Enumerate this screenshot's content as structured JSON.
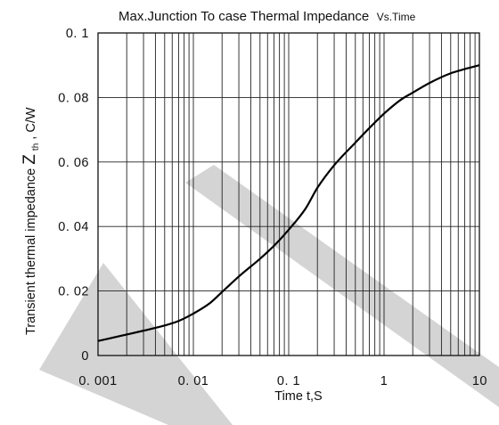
{
  "chart_data": {
    "type": "line",
    "title": "Max.Junction To case Thermal Impedance",
    "title_suffix": "Vs.Time",
    "xlabel": "Time t,S",
    "ylabel_prefix": "Transient thermal impedance  ",
    "ylabel_symbol": "Z",
    "ylabel_subscript": "th",
    "ylabel_unit": ",   C/W",
    "x_scale": "log",
    "xlim": [
      0.001,
      10
    ],
    "ylim": [
      0,
      0.1
    ],
    "x_ticks": [
      0.001,
      0.01,
      0.1,
      1,
      10
    ],
    "x_tick_labels": [
      "0. 001",
      "0. 01",
      "0. 1",
      "1",
      "10"
    ],
    "y_ticks": [
      0,
      0.02,
      0.04,
      0.06,
      0.08,
      0.1
    ],
    "y_tick_labels": [
      "0",
      "0. 02",
      "0. 04",
      "0. 06",
      "0. 08",
      "0. 1"
    ],
    "grid": true,
    "series": [
      {
        "x": [
          0.001,
          0.002,
          0.003,
          0.005,
          0.007,
          0.01,
          0.015,
          0.02,
          0.03,
          0.05,
          0.07,
          0.1,
          0.15,
          0.2,
          0.3,
          0.5,
          0.7,
          1,
          1.5,
          2,
          3,
          5,
          7,
          10
        ],
        "y": [
          0.0045,
          0.0065,
          0.0077,
          0.0093,
          0.0107,
          0.013,
          0.0163,
          0.0197,
          0.0245,
          0.03,
          0.034,
          0.039,
          0.0455,
          0.052,
          0.059,
          0.066,
          0.0705,
          0.075,
          0.0793,
          0.0815,
          0.0845,
          0.0875,
          0.0888,
          0.09
        ]
      }
    ]
  }
}
